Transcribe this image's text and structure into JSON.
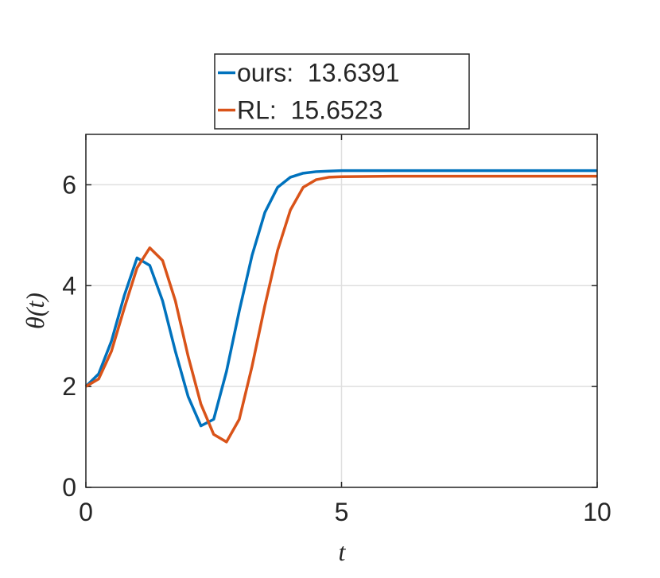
{
  "chart_data": {
    "type": "line",
    "xlabel": "t",
    "ylabel": "θ(t)",
    "x": [
      0,
      0.25,
      0.5,
      0.75,
      1,
      1.25,
      1.5,
      1.75,
      2,
      2.25,
      2.5,
      2.75,
      3,
      3.25,
      3.5,
      3.75,
      4,
      4.25,
      4.5,
      4.75,
      5,
      6,
      7,
      8,
      9,
      10
    ],
    "series": [
      {
        "name": "ours:  13.6391",
        "color": "#0072bd",
        "values": [
          2.0,
          2.25,
          2.9,
          3.8,
          4.55,
          4.4,
          3.7,
          2.7,
          1.8,
          1.22,
          1.35,
          2.3,
          3.5,
          4.6,
          5.45,
          5.95,
          6.15,
          6.23,
          6.26,
          6.27,
          6.28,
          6.28,
          6.28,
          6.28,
          6.28,
          6.28
        ]
      },
      {
        "name": "RL:  15.6523",
        "color": "#d95319",
        "values": [
          2.0,
          2.15,
          2.7,
          3.55,
          4.35,
          4.75,
          4.5,
          3.7,
          2.6,
          1.65,
          1.05,
          0.9,
          1.35,
          2.4,
          3.6,
          4.7,
          5.5,
          5.95,
          6.1,
          6.15,
          6.16,
          6.17,
          6.17,
          6.17,
          6.17,
          6.17
        ]
      }
    ],
    "xlim": [
      0,
      10
    ],
    "xticks": [
      0,
      5,
      10
    ],
    "ylim": [
      0,
      7
    ],
    "yticks": [
      0,
      2,
      4,
      6
    ],
    "grid": true,
    "legend": "northoutside"
  }
}
